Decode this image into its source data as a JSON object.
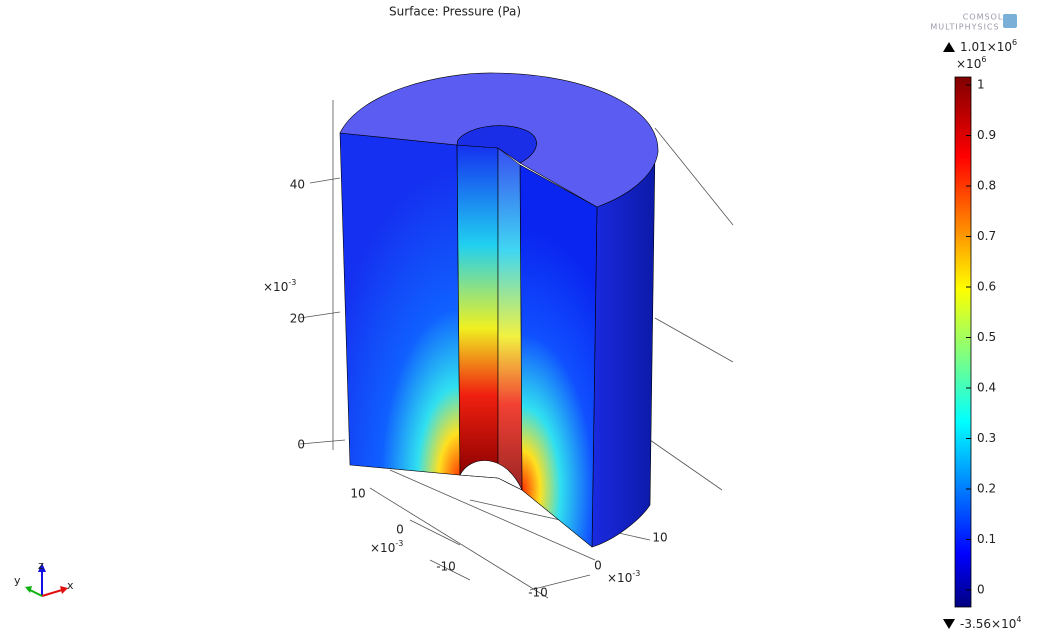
{
  "title": "Surface: Pressure (Pa)",
  "logo": {
    "line1": "COMSOL",
    "line2": "MULTIPHYSICS"
  },
  "colorbar": {
    "max": {
      "base": "1.01×10",
      "exp": "6"
    },
    "scale": {
      "base": "×10",
      "exp": "6"
    },
    "ticks": [
      "1",
      "0.9",
      "0.8",
      "0.7",
      "0.6",
      "0.5",
      "0.4",
      "0.3",
      "0.2",
      "0.1",
      "0"
    ],
    "min": {
      "base": "-3.56×10",
      "exp": "4"
    }
  },
  "axes": {
    "z": {
      "ticks": [
        "40",
        "20",
        "0"
      ],
      "scale": {
        "base": "×10",
        "exp": "-3"
      }
    },
    "y": {
      "ticks": [
        "10",
        "0",
        "-10"
      ],
      "scale": {
        "base": "×10",
        "exp": "-3"
      }
    },
    "x": {
      "ticks": [
        "0",
        "10",
        "-10"
      ],
      "scale": {
        "base": "×10",
        "exp": "-3"
      }
    }
  },
  "triad": {
    "x": "x",
    "y": "y",
    "z": "z"
  }
}
